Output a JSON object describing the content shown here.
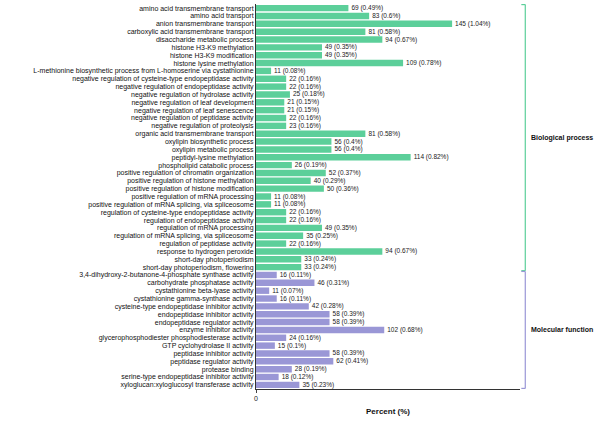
{
  "chart_data": {
    "type": "bar",
    "orientation": "horizontal",
    "x_label": "Percent (%)",
    "xlim": [
      0,
      1.4
    ],
    "xticks": [
      0
    ],
    "grid": false,
    "data_labels": true,
    "series": [
      {
        "name": "Biological process",
        "color": "#5ccf9a",
        "categories": [
          "amino acid transmembrane transport",
          "amino acid transport",
          "anion transmembrane transport",
          "carboxylic acid transmembrane transport",
          "disaccharide metabolic process",
          "histone H3-K9 methylation",
          "histone H3-K9 modification",
          "histone lysine methylation",
          "L-methionine biosynthetic process from L-homoserine via cystathionine",
          "negative regulation of cysteine-type endopeptidase activity",
          "negative regulation of endopeptidase activity",
          "negative regulation of hydrolase activity",
          "negative regulation of leaf development",
          "negative regulation of leaf senescence",
          "negative regulation of peptidase activity",
          "negative regulation of proteolysis",
          "organic acid transmembrane transport",
          "oxylipin biosynthetic process",
          "oxylipin metabolic process",
          "peptidyl-lysine methylation",
          "phospholipid catabolic process",
          "positive regulation of chromatin organization",
          "positive regulation of histone methylation",
          "positive regulation of histone modification",
          "positive regulation of mRNA processing",
          "positive regulation of mRNA splicing, via spliceosome",
          "regulation of cysteine-type endopeptidase activity",
          "regulation of endopeptidase activity",
          "regulation of mRNA processing",
          "regulation of mRNA splicing, via spliceosome",
          "regulation of peptidase activity",
          "response to hydrogen peroxide",
          "short-day photoperiodism",
          "short-day photoperiodism, flowering"
        ],
        "values": [
          0.49,
          0.6,
          1.04,
          0.58,
          0.67,
          0.35,
          0.35,
          0.78,
          0.08,
          0.16,
          0.16,
          0.18,
          0.15,
          0.15,
          0.16,
          0.16,
          0.58,
          0.4,
          0.4,
          0.82,
          0.19,
          0.37,
          0.29,
          0.36,
          0.08,
          0.08,
          0.16,
          0.16,
          0.35,
          0.25,
          0.16,
          0.67,
          0.24,
          0.24
        ],
        "value_labels": [
          "69 (0.49%)",
          "83 (0.6%)",
          "145 (1.04%)",
          "81 (0.58%)",
          "94 (0.67%)",
          "49 (0.35%)",
          "49 (0.35%)",
          "109 (0.78%)",
          "11 (0.08%)",
          "22 (0.16%)",
          "22 (0.16%)",
          "25 (0.18%)",
          "21 (0.15%)",
          "21 (0.15%)",
          "22 (0.16%)",
          "23 (0.16%)",
          "81 (0.58%)",
          "56 (0.4%)",
          "56 (0.4%)",
          "114 (0.82%)",
          "26 (0.19%)",
          "52 (0.37%)",
          "40 (0.29%)",
          "50 (0.36%)",
          "11 (0.08%)",
          "11 (0.08%)",
          "22 (0.16%)",
          "22 (0.16%)",
          "49 (0.35%)",
          "35 (0.25%)",
          "22 (0.16%)",
          "94 (0.67%)",
          "33 (0.24%)",
          "33 (0.24%)"
        ]
      },
      {
        "name": "Molecular function",
        "color": "#9a97d6",
        "categories": [
          "3,4-dihydroxy-2-butanone-4-phosphate synthase activity",
          "carbohydrate phosphatase activity",
          "cystathionine beta-lyase activity",
          "cystathionine gamma-synthase activity",
          "cysteine-type endopeptidase inhibitor activity",
          "endopeptidase inhibitor activity",
          "endopeptidase regulator activity",
          "enzyme inhibitor activity",
          "glycerophosphodiester phosphodiesterase activity",
          "GTP cyclohydrolase II activity",
          "peptidase inhibitor activity",
          "peptidase regulator activity",
          "protease binding",
          "serine-type endopeptidase inhibitor activity",
          "xyloglucan:xyloglucosyl transferase activity"
        ],
        "values": [
          0.11,
          0.31,
          0.07,
          0.11,
          0.28,
          0.39,
          0.39,
          0.68,
          0.16,
          0.1,
          0.39,
          0.41,
          0.19,
          0.12,
          0.23
        ],
        "value_labels": [
          "16 (0.11%)",
          "46 (0.31%)",
          "11 (0.07%)",
          "16 (0.11%)",
          "42 (0.28%)",
          "58 (0.39%)",
          "58 (0.39%)",
          "102 (0.68%)",
          "24 (0.16%)",
          "15 (0.1%)",
          "58 (0.39%)",
          "62 (0.41%)",
          "28 (0.19%)",
          "18 (0.12%)",
          "35 (0.23%)"
        ]
      }
    ]
  }
}
